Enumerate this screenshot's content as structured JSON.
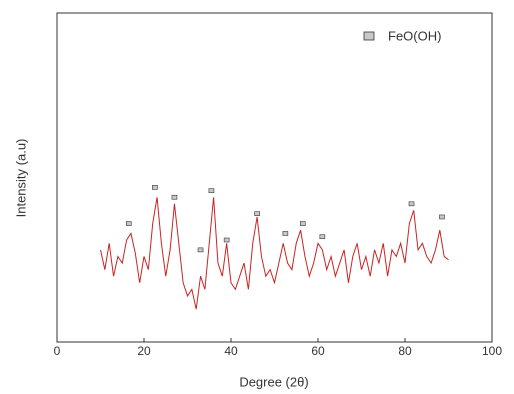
{
  "chart_data": {
    "type": "line",
    "xlabel": "Degree (2θ)",
    "ylabel": "Intensity (a.u)",
    "xlim": [
      0,
      100
    ],
    "xticks": [
      0,
      20,
      40,
      60,
      80,
      100
    ],
    "ylim": [
      0,
      100
    ],
    "x": [
      10,
      11,
      12,
      13,
      14,
      15,
      16,
      17,
      18,
      19,
      20,
      21,
      22,
      23,
      24,
      25,
      26,
      27,
      28,
      29,
      30,
      31,
      32,
      33,
      34,
      35,
      36,
      37,
      38,
      39,
      40,
      41,
      42,
      43,
      44,
      45,
      46,
      47,
      48,
      49,
      50,
      51,
      52,
      53,
      54,
      55,
      56,
      57,
      58,
      59,
      60,
      61,
      62,
      63,
      64,
      65,
      66,
      67,
      68,
      69,
      70,
      71,
      72,
      73,
      74,
      75,
      76,
      77,
      78,
      79,
      80,
      81,
      82,
      83,
      84,
      85,
      86,
      87,
      88,
      89,
      90
    ],
    "series": [
      {
        "name": "FeO(OH)",
        "color": "#cc2222",
        "values": [
          28,
          22,
          30,
          20,
          26,
          24,
          31,
          33,
          27,
          18,
          26,
          22,
          36,
          44,
          30,
          20,
          28,
          42,
          30,
          18,
          14,
          16,
          10,
          20,
          16,
          30,
          44,
          24,
          20,
          30,
          18,
          16,
          20,
          24,
          16,
          30,
          38,
          26,
          20,
          22,
          18,
          24,
          30,
          24,
          22,
          30,
          34,
          26,
          20,
          24,
          30,
          28,
          22,
          26,
          20,
          24,
          28,
          18,
          26,
          30,
          22,
          26,
          20,
          28,
          24,
          30,
          20,
          28,
          26,
          30,
          24,
          36,
          40,
          28,
          30,
          26,
          24,
          28,
          34,
          26,
          25
        ]
      }
    ],
    "markers": {
      "color": "#c8c8c8",
      "x": [
        16.5,
        22.5,
        27,
        33,
        35.5,
        39,
        46,
        52.5,
        56.5,
        61,
        81.5,
        88.5
      ],
      "y": [
        36,
        47,
        44,
        28,
        46,
        31,
        39,
        33,
        36,
        32,
        42,
        38
      ]
    },
    "legend": "upper right"
  }
}
